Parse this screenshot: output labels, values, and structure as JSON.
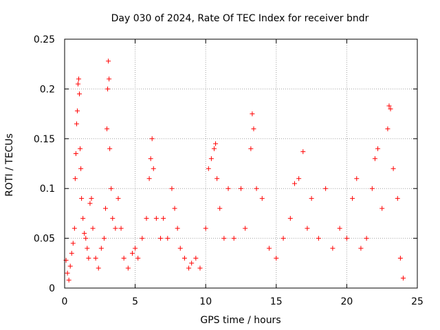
{
  "chart_data": {
    "type": "scatter",
    "title": "Day 030 of 2024, Rate Of TEC Index for receiver bndr",
    "xlabel": "GPS time / hours",
    "ylabel": "ROTI / TECUs",
    "xlim": [
      0,
      25
    ],
    "ylim": [
      0,
      0.25
    ],
    "xticks": [
      "0",
      "5",
      "10",
      "15",
      "20",
      "25"
    ],
    "yticks": [
      "0",
      "0.05",
      "0.1",
      "0.15",
      "0.2",
      "0.25"
    ],
    "grid": true,
    "marker": "+",
    "color": "#ff0000",
    "series": [
      {
        "values": [
          [
            0.1,
            0.028
          ],
          [
            0.2,
            0.015
          ],
          [
            0.3,
            0.008
          ],
          [
            0.4,
            0.022
          ],
          [
            0.5,
            0.035
          ],
          [
            0.6,
            0.045
          ],
          [
            0.7,
            0.06
          ],
          [
            0.75,
            0.11
          ],
          [
            0.8,
            0.135
          ],
          [
            0.85,
            0.165
          ],
          [
            0.9,
            0.178
          ],
          [
            0.95,
            0.205
          ],
          [
            1.0,
            0.21
          ],
          [
            1.05,
            0.195
          ],
          [
            1.1,
            0.14
          ],
          [
            1.15,
            0.12
          ],
          [
            1.2,
            0.09
          ],
          [
            1.3,
            0.07
          ],
          [
            1.4,
            0.055
          ],
          [
            1.5,
            0.05
          ],
          [
            1.6,
            0.04
          ],
          [
            1.7,
            0.03
          ],
          [
            1.8,
            0.085
          ],
          [
            1.9,
            0.09
          ],
          [
            2.0,
            0.06
          ],
          [
            2.2,
            0.03
          ],
          [
            2.4,
            0.02
          ],
          [
            2.6,
            0.04
          ],
          [
            2.8,
            0.05
          ],
          [
            2.9,
            0.08
          ],
          [
            3.0,
            0.16
          ],
          [
            3.05,
            0.2
          ],
          [
            3.1,
            0.228
          ],
          [
            3.15,
            0.21
          ],
          [
            3.2,
            0.14
          ],
          [
            3.3,
            0.1
          ],
          [
            3.4,
            0.07
          ],
          [
            3.6,
            0.06
          ],
          [
            3.8,
            0.09
          ],
          [
            4.0,
            0.06
          ],
          [
            4.2,
            0.03
          ],
          [
            4.5,
            0.02
          ],
          [
            4.8,
            0.035
          ],
          [
            5.0,
            0.04
          ],
          [
            5.2,
            0.03
          ],
          [
            5.5,
            0.05
          ],
          [
            5.8,
            0.07
          ],
          [
            6.0,
            0.11
          ],
          [
            6.1,
            0.13
          ],
          [
            6.2,
            0.15
          ],
          [
            6.3,
            0.12
          ],
          [
            6.5,
            0.07
          ],
          [
            6.8,
            0.05
          ],
          [
            7.0,
            0.07
          ],
          [
            7.3,
            0.05
          ],
          [
            7.6,
            0.1
          ],
          [
            7.8,
            0.08
          ],
          [
            8.0,
            0.06
          ],
          [
            8.2,
            0.04
          ],
          [
            8.5,
            0.03
          ],
          [
            8.8,
            0.02
          ],
          [
            9.0,
            0.025
          ],
          [
            9.3,
            0.03
          ],
          [
            9.6,
            0.02
          ],
          [
            10.0,
            0.06
          ],
          [
            10.2,
            0.12
          ],
          [
            10.4,
            0.13
          ],
          [
            10.6,
            0.14
          ],
          [
            10.7,
            0.145
          ],
          [
            10.8,
            0.11
          ],
          [
            11.0,
            0.08
          ],
          [
            11.3,
            0.05
          ],
          [
            11.6,
            0.1
          ],
          [
            12.0,
            0.05
          ],
          [
            12.5,
            0.1
          ],
          [
            12.8,
            0.06
          ],
          [
            13.2,
            0.14
          ],
          [
            13.3,
            0.175
          ],
          [
            13.4,
            0.16
          ],
          [
            13.6,
            0.1
          ],
          [
            14.0,
            0.09
          ],
          [
            14.5,
            0.04
          ],
          [
            15.0,
            0.03
          ],
          [
            15.5,
            0.05
          ],
          [
            16.0,
            0.07
          ],
          [
            16.3,
            0.105
          ],
          [
            16.6,
            0.11
          ],
          [
            16.9,
            0.137
          ],
          [
            17.2,
            0.06
          ],
          [
            17.5,
            0.09
          ],
          [
            18.0,
            0.05
          ],
          [
            18.5,
            0.1
          ],
          [
            19.0,
            0.04
          ],
          [
            19.5,
            0.06
          ],
          [
            20.0,
            0.05
          ],
          [
            20.4,
            0.09
          ],
          [
            20.7,
            0.11
          ],
          [
            21.0,
            0.04
          ],
          [
            21.4,
            0.05
          ],
          [
            21.8,
            0.1
          ],
          [
            22.0,
            0.13
          ],
          [
            22.2,
            0.14
          ],
          [
            22.5,
            0.08
          ],
          [
            22.9,
            0.16
          ],
          [
            23.0,
            0.183
          ],
          [
            23.1,
            0.18
          ],
          [
            23.3,
            0.12
          ],
          [
            23.6,
            0.09
          ],
          [
            23.8,
            0.03
          ],
          [
            24.0,
            0.01
          ]
        ]
      }
    ]
  }
}
